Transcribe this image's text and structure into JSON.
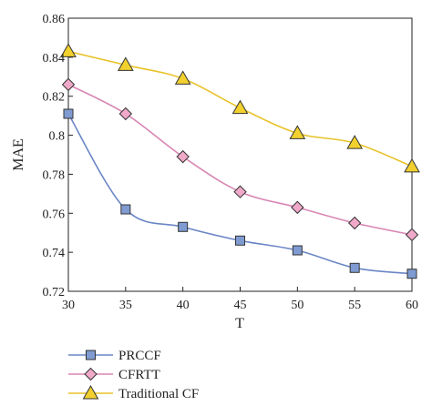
{
  "chart_data": {
    "type": "line",
    "xlabel": "T",
    "ylabel": "MAE",
    "x": [
      30,
      35,
      40,
      45,
      50,
      55,
      60
    ],
    "xlim": [
      30,
      60
    ],
    "ylim": [
      0.72,
      0.86
    ],
    "xticks": [
      "30",
      "35",
      "40",
      "45",
      "50",
      "55",
      "60"
    ],
    "yticks": [
      "0.72",
      "0.74",
      "0.76",
      "0.78",
      "0.8",
      "0.82",
      "0.84",
      "0.86"
    ],
    "grid": false,
    "legend_position": "bottom-left, below plot",
    "series": [
      {
        "name": "PRCCF",
        "values": [
          0.811,
          0.762,
          0.753,
          0.746,
          0.741,
          0.732,
          0.729
        ],
        "color": "#6b86c6",
        "marker_fill": "#7f9bd1",
        "marker": "square"
      },
      {
        "name": "CFRTT",
        "values": [
          0.826,
          0.811,
          0.789,
          0.771,
          0.763,
          0.755,
          0.749
        ],
        "color": "#d986b4",
        "marker_fill": "#f0a9c9",
        "marker": "diamond"
      },
      {
        "name": "Traditional CF",
        "values": [
          0.843,
          0.836,
          0.829,
          0.814,
          0.801,
          0.796,
          0.784
        ],
        "color": "#e8c229",
        "marker_fill": "#f2d12e",
        "marker": "triangle"
      }
    ]
  }
}
